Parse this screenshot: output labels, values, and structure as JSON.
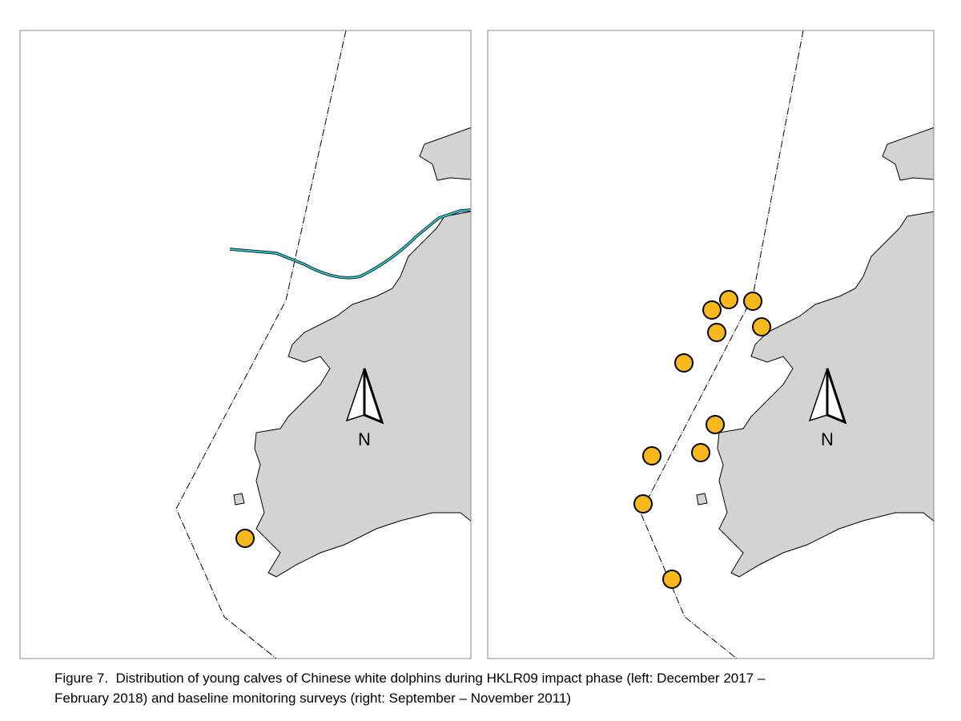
{
  "panels": [
    {
      "north_label": "N"
    },
    {
      "north_label": "N"
    }
  ],
  "caption": [
    "Figure 7.  Distribution of young calves of Chinese white dolphins during HKLR09 impact phase (left: December 2017 –",
    "February 2018) and baseline monitoring surveys (right: September – November 2011)"
  ]
}
